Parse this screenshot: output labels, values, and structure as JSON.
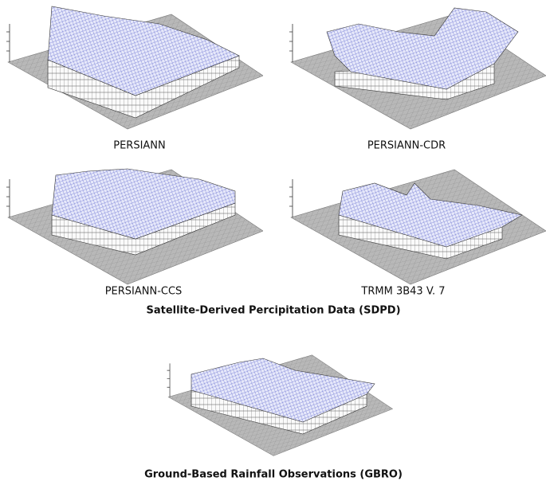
{
  "panels": [
    {
      "label": "PERSIANN"
    },
    {
      "label": "PERSIANN-CDR"
    },
    {
      "label": "PERSIANN-CCS"
    },
    {
      "label": "TRMM 3B43 V. 7"
    },
    {
      "label": "Ground-Based Rainfall Observations (GBRO)"
    }
  ],
  "section_title": "Satellite-Derived Percipitation Data (SDPD)"
}
